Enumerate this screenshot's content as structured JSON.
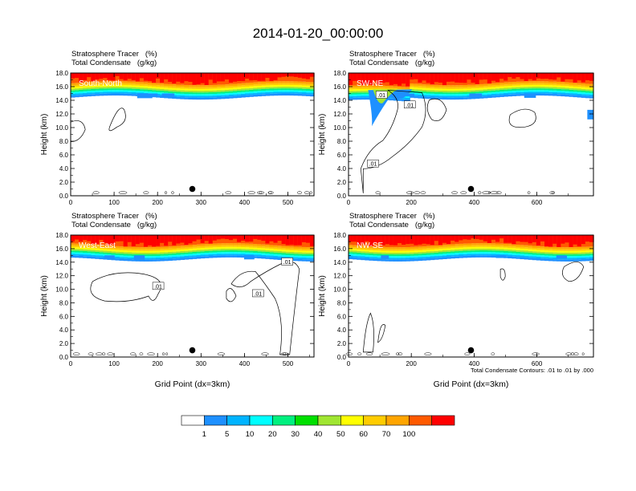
{
  "title": "2014-01-20_00:00:00",
  "x_axis_label": "Grid Point (dx=3km)",
  "footnote": "Total Condensate Contours: .01 to .01 by .000",
  "colorbar": {
    "colors": [
      "#ffffff",
      "#1e90ff",
      "#00b4ff",
      "#00ffff",
      "#00f07f",
      "#00e000",
      "#a0e632",
      "#ffff00",
      "#ffcc00",
      "#ffa500",
      "#ff5a00",
      "#ff0000"
    ],
    "labels": [
      "1",
      "5",
      "10",
      "20",
      "30",
      "40",
      "50",
      "60",
      "70",
      "100"
    ]
  },
  "chart_data": [
    {
      "type": "heatmap",
      "name": "South-North",
      "title_line1": "Stratosphere Tracer",
      "unit_line1": "(%)",
      "title_line2": "Total Condensate",
      "unit_line2": "(g/kg)",
      "ylabel": "Height (km)",
      "xlabel": "",
      "xlim": [
        0,
        560
      ],
      "ylim": [
        0,
        18
      ],
      "xticks": [
        "0",
        "100",
        "200",
        "300",
        "400",
        "500"
      ],
      "yticks": [
        "0.0",
        "2.0",
        "4.0",
        "6.0",
        "8.0",
        "10.0",
        "12.0",
        "14.0",
        "16.0",
        "18.0"
      ],
      "marker_x": 280,
      "marker_y": 1.0,
      "contour_labels": []
    },
    {
      "type": "heatmap",
      "name": "SW-NE",
      "title_line1": "Stratosphere Tracer",
      "unit_line1": "(%)",
      "title_line2": "Total Condensate",
      "unit_line2": "(g/kg)",
      "ylabel": "Height (km)",
      "xlabel": "",
      "xlim": [
        0,
        780
      ],
      "ylim": [
        0,
        18
      ],
      "xticks": [
        "0",
        "200",
        "400",
        "600"
      ],
      "yticks": [
        "0.0",
        "2.0",
        "4.0",
        "6.0",
        "8.0",
        "10.0",
        "12.0",
        "14.0",
        "16.0",
        "18.0"
      ],
      "marker_x": 390,
      "marker_y": 1.0,
      "contour_labels": [
        ".01",
        ".01",
        ".01"
      ]
    },
    {
      "type": "heatmap",
      "name": "West-East",
      "title_line1": "Stratosphere Tracer",
      "unit_line1": "(%)",
      "title_line2": "Total Condensate",
      "unit_line2": "(g/kg)",
      "ylabel": "Height (km)",
      "xlabel": "Grid Point (dx=3km)",
      "xlim": [
        0,
        560
      ],
      "ylim": [
        0,
        18
      ],
      "xticks": [
        "0",
        "100",
        "200",
        "300",
        "400",
        "500"
      ],
      "yticks": [
        "0.0",
        "2.0",
        "4.0",
        "6.0",
        "8.0",
        "10.0",
        "12.0",
        "14.0",
        "16.0",
        "18.0"
      ],
      "marker_x": 280,
      "marker_y": 1.0,
      "contour_labels": [
        ".01",
        ".01",
        ".01"
      ]
    },
    {
      "type": "heatmap",
      "name": "NW-SE",
      "title_line1": "Stratosphere Tracer",
      "unit_line1": "(%)",
      "title_line2": "Total Condensate",
      "unit_line2": "(g/kg)",
      "ylabel": "Height (km)",
      "xlabel": "Grid Point (dx=3km)",
      "xlim": [
        0,
        780
      ],
      "ylim": [
        0,
        18
      ],
      "xticks": [
        "0",
        "200",
        "400",
        "600"
      ],
      "yticks": [
        "0.0",
        "2.0",
        "4.0",
        "6.0",
        "8.0",
        "10.0",
        "12.0",
        "14.0",
        "16.0",
        "18.0"
      ],
      "marker_x": 390,
      "marker_y": 1.0,
      "contour_labels": []
    }
  ]
}
